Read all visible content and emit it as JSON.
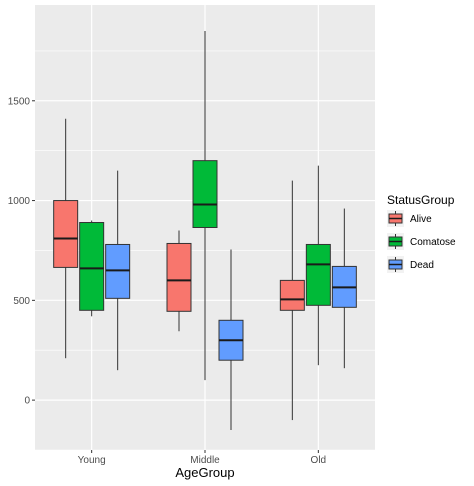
{
  "chart_data": {
    "type": "boxplot",
    "title": "",
    "xlabel": "AgeGroup",
    "ylabel": "",
    "categories": [
      "Young",
      "Middle",
      "Old"
    ],
    "ylim": [
      -250,
      1980
    ],
    "yticks": [
      0,
      500,
      1000,
      1500
    ],
    "grid": true,
    "legend": {
      "title": "StatusGroup",
      "position": "right"
    },
    "series": [
      {
        "name": "Alive",
        "color": "#F8766D",
        "boxes": [
          {
            "category": "Young",
            "min": 210,
            "q1": 665,
            "median": 810,
            "q3": 1000,
            "max": 1410
          },
          {
            "category": "Middle",
            "min": 345,
            "q1": 445,
            "median": 600,
            "q3": 785,
            "max": 850
          },
          {
            "category": "Old",
            "min": -100,
            "q1": 450,
            "median": 505,
            "q3": 600,
            "max": 1100
          }
        ]
      },
      {
        "name": "Comatose",
        "color": "#00BA38",
        "boxes": [
          {
            "category": "Young",
            "min": 420,
            "q1": 450,
            "median": 660,
            "q3": 890,
            "max": 900
          },
          {
            "category": "Middle",
            "min": 100,
            "q1": 865,
            "median": 980,
            "q3": 1200,
            "max": 1850
          },
          {
            "category": "Old",
            "min": 175,
            "q1": 475,
            "median": 680,
            "q3": 780,
            "max": 1175
          }
        ]
      },
      {
        "name": "Dead",
        "color": "#619CFF",
        "boxes": [
          {
            "category": "Young",
            "min": 150,
            "q1": 510,
            "median": 650,
            "q3": 780,
            "max": 1150
          },
          {
            "category": "Middle",
            "min": -150,
            "q1": 200,
            "median": 300,
            "q3": 400,
            "max": 755
          },
          {
            "category": "Old",
            "min": 160,
            "q1": 465,
            "median": 565,
            "q3": 670,
            "max": 960
          }
        ]
      }
    ]
  }
}
